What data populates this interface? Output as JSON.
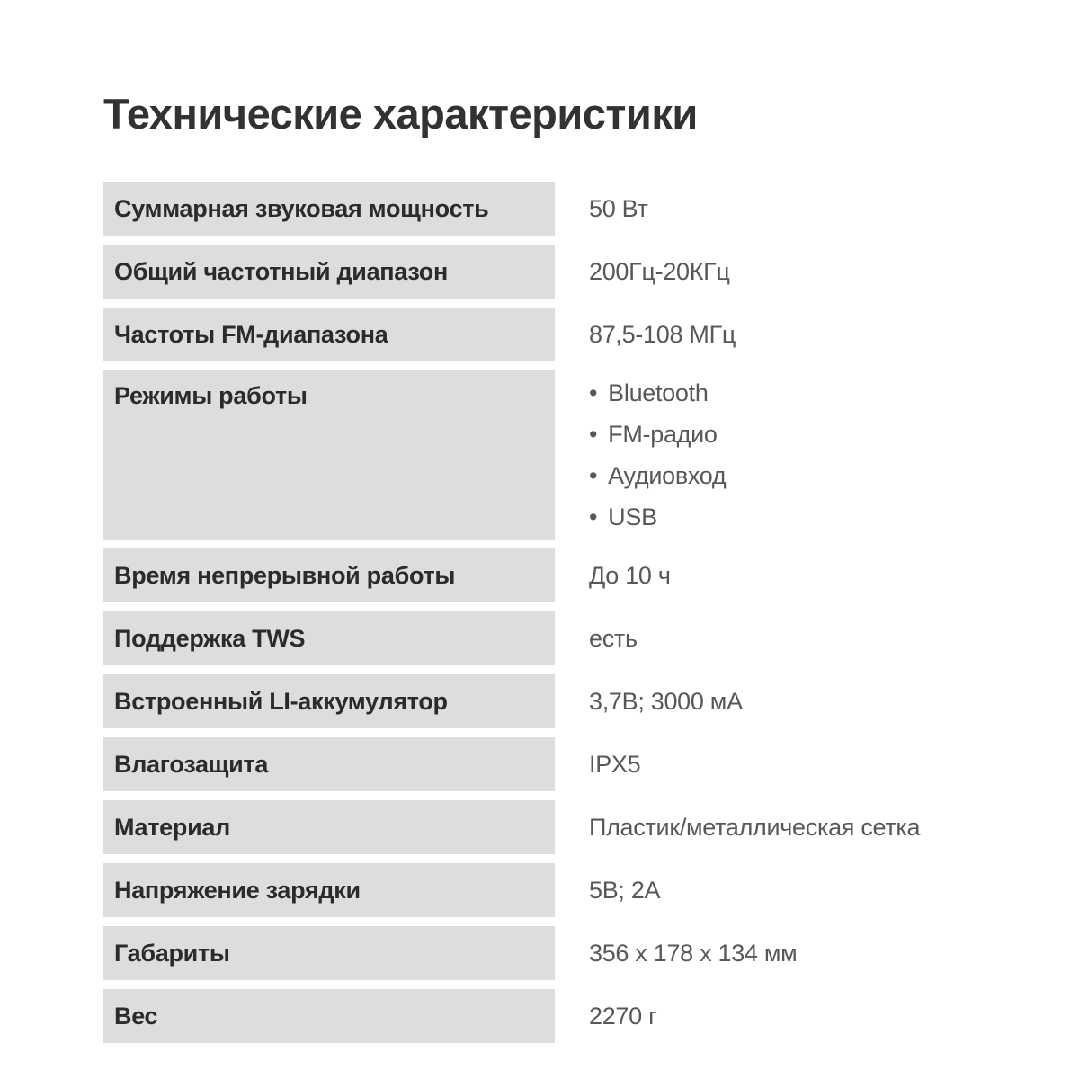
{
  "page": {
    "title": "Технические характеристики",
    "colors": {
      "background": "#ffffff",
      "label_cell_bg": "#dcddde",
      "label_text": "#2b2b2d",
      "value_text": "#58585a",
      "title_text": "#313234"
    }
  },
  "specs": {
    "rows": [
      {
        "label": "Суммарная звуковая мощность",
        "value": "50 Вт"
      },
      {
        "label": "Общий частотный диапазон",
        "value": "200Гц-20КГц"
      },
      {
        "label": "Частоты FM-диапазона",
        "value": "87,5-108 МГц"
      },
      {
        "label": "Режимы работы",
        "value_list": [
          "Bluetooth",
          "FM-радио",
          "Аудиовход",
          "USB"
        ]
      },
      {
        "label": "Время непрерывной работы",
        "value": "До 10 ч"
      },
      {
        "label": "Поддержка TWS",
        "value": "есть"
      },
      {
        "label": "Встроенный LI-аккумулятор",
        "value": "3,7В; 3000 мА"
      },
      {
        "label": "Влагозащита",
        "value": "IPX5"
      },
      {
        "label": "Материал",
        "value": "Пластик/металлическая сетка"
      },
      {
        "label": "Напряжение зарядки",
        "value": "5В; 2А"
      },
      {
        "label": "Габариты",
        "value": "356 х 178 х 134 мм"
      },
      {
        "label": "Вес",
        "value": "2270 г"
      }
    ]
  }
}
